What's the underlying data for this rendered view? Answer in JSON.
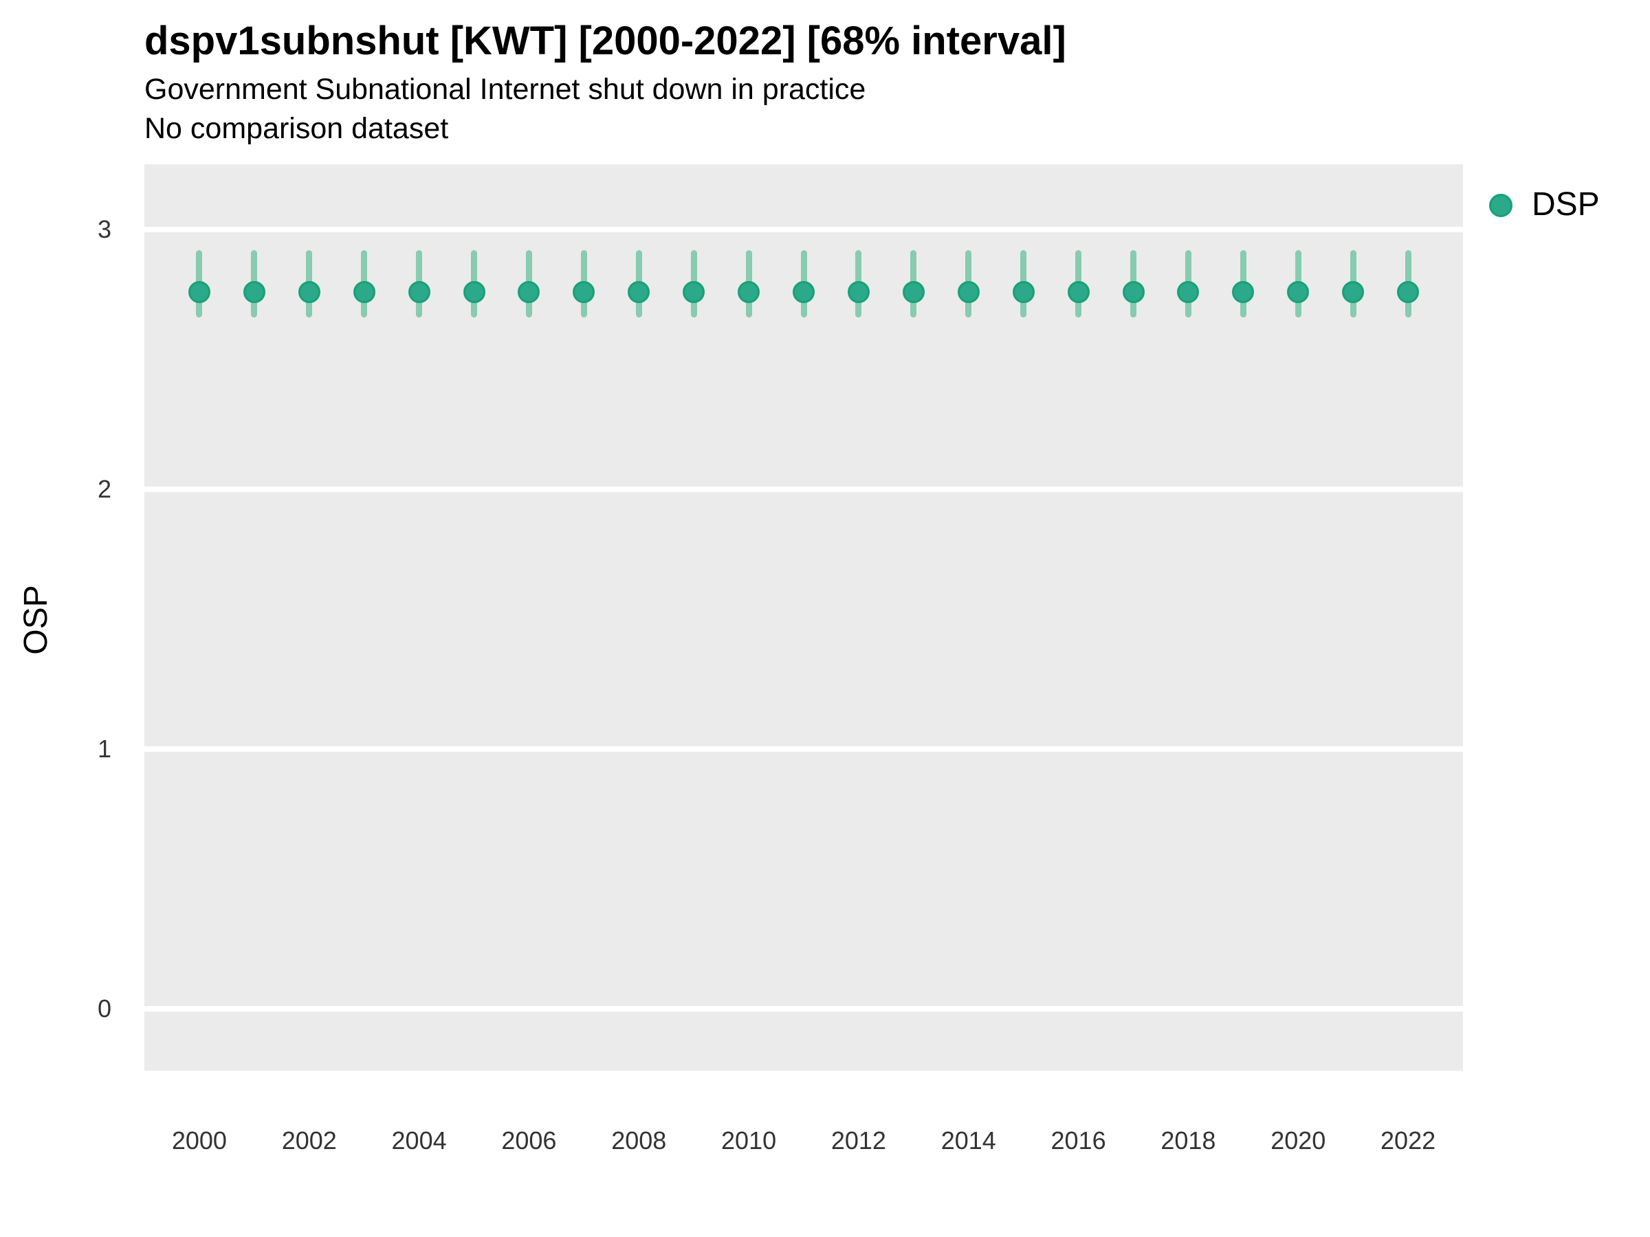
{
  "header": {
    "title": "dspv1subnshut [KWT] [2000-2022] [68% interval]",
    "subtitle": "Government Subnational Internet shut down in practice",
    "subtitle2": "No comparison dataset"
  },
  "legend": {
    "label": "DSP"
  },
  "chart_data": {
    "type": "scatter",
    "title": "dspv1subnshut [KWT] [2000-2022] [68% interval]",
    "subtitle": "Government Subnational Internet shut down in practice",
    "note": "No comparison dataset",
    "interval_label": "68% interval",
    "xlabel": "",
    "ylabel": "OSP",
    "x": [
      2000,
      2001,
      2002,
      2003,
      2004,
      2005,
      2006,
      2007,
      2008,
      2009,
      2010,
      2011,
      2012,
      2013,
      2014,
      2015,
      2016,
      2017,
      2018,
      2019,
      2020,
      2021,
      2022
    ],
    "series": [
      {
        "name": "DSP",
        "values": [
          2.76,
          2.76,
          2.76,
          2.76,
          2.76,
          2.76,
          2.76,
          2.76,
          2.76,
          2.76,
          2.76,
          2.76,
          2.76,
          2.76,
          2.76,
          2.76,
          2.76,
          2.76,
          2.76,
          2.76,
          2.76,
          2.76,
          2.76
        ],
        "lower": [
          2.66,
          2.66,
          2.66,
          2.66,
          2.66,
          2.66,
          2.66,
          2.66,
          2.66,
          2.66,
          2.66,
          2.66,
          2.66,
          2.66,
          2.66,
          2.66,
          2.66,
          2.66,
          2.66,
          2.66,
          2.66,
          2.66,
          2.66
        ],
        "upper": [
          2.92,
          2.92,
          2.92,
          2.92,
          2.92,
          2.92,
          2.92,
          2.92,
          2.92,
          2.92,
          2.92,
          2.92,
          2.92,
          2.92,
          2.92,
          2.92,
          2.92,
          2.92,
          2.92,
          2.92,
          2.92,
          2.92,
          2.92
        ]
      }
    ],
    "xlim": [
      1999,
      2023
    ],
    "ylim": [
      -0.238,
      3.251
    ],
    "x_ticks": [
      2000,
      2002,
      2004,
      2006,
      2008,
      2010,
      2012,
      2014,
      2016,
      2018,
      2020,
      2022
    ],
    "y_ticks": [
      0,
      1,
      2,
      3
    ],
    "grid": "horizontal-major-only",
    "legend_position": "right-top",
    "colors": {
      "point_fill": "#2ba98a",
      "point_ring": "#18a176",
      "interval": "#87cbb0",
      "panel_bg": "#ebebeb",
      "gridline": "#ffffff",
      "axis_text": "#333333"
    }
  }
}
